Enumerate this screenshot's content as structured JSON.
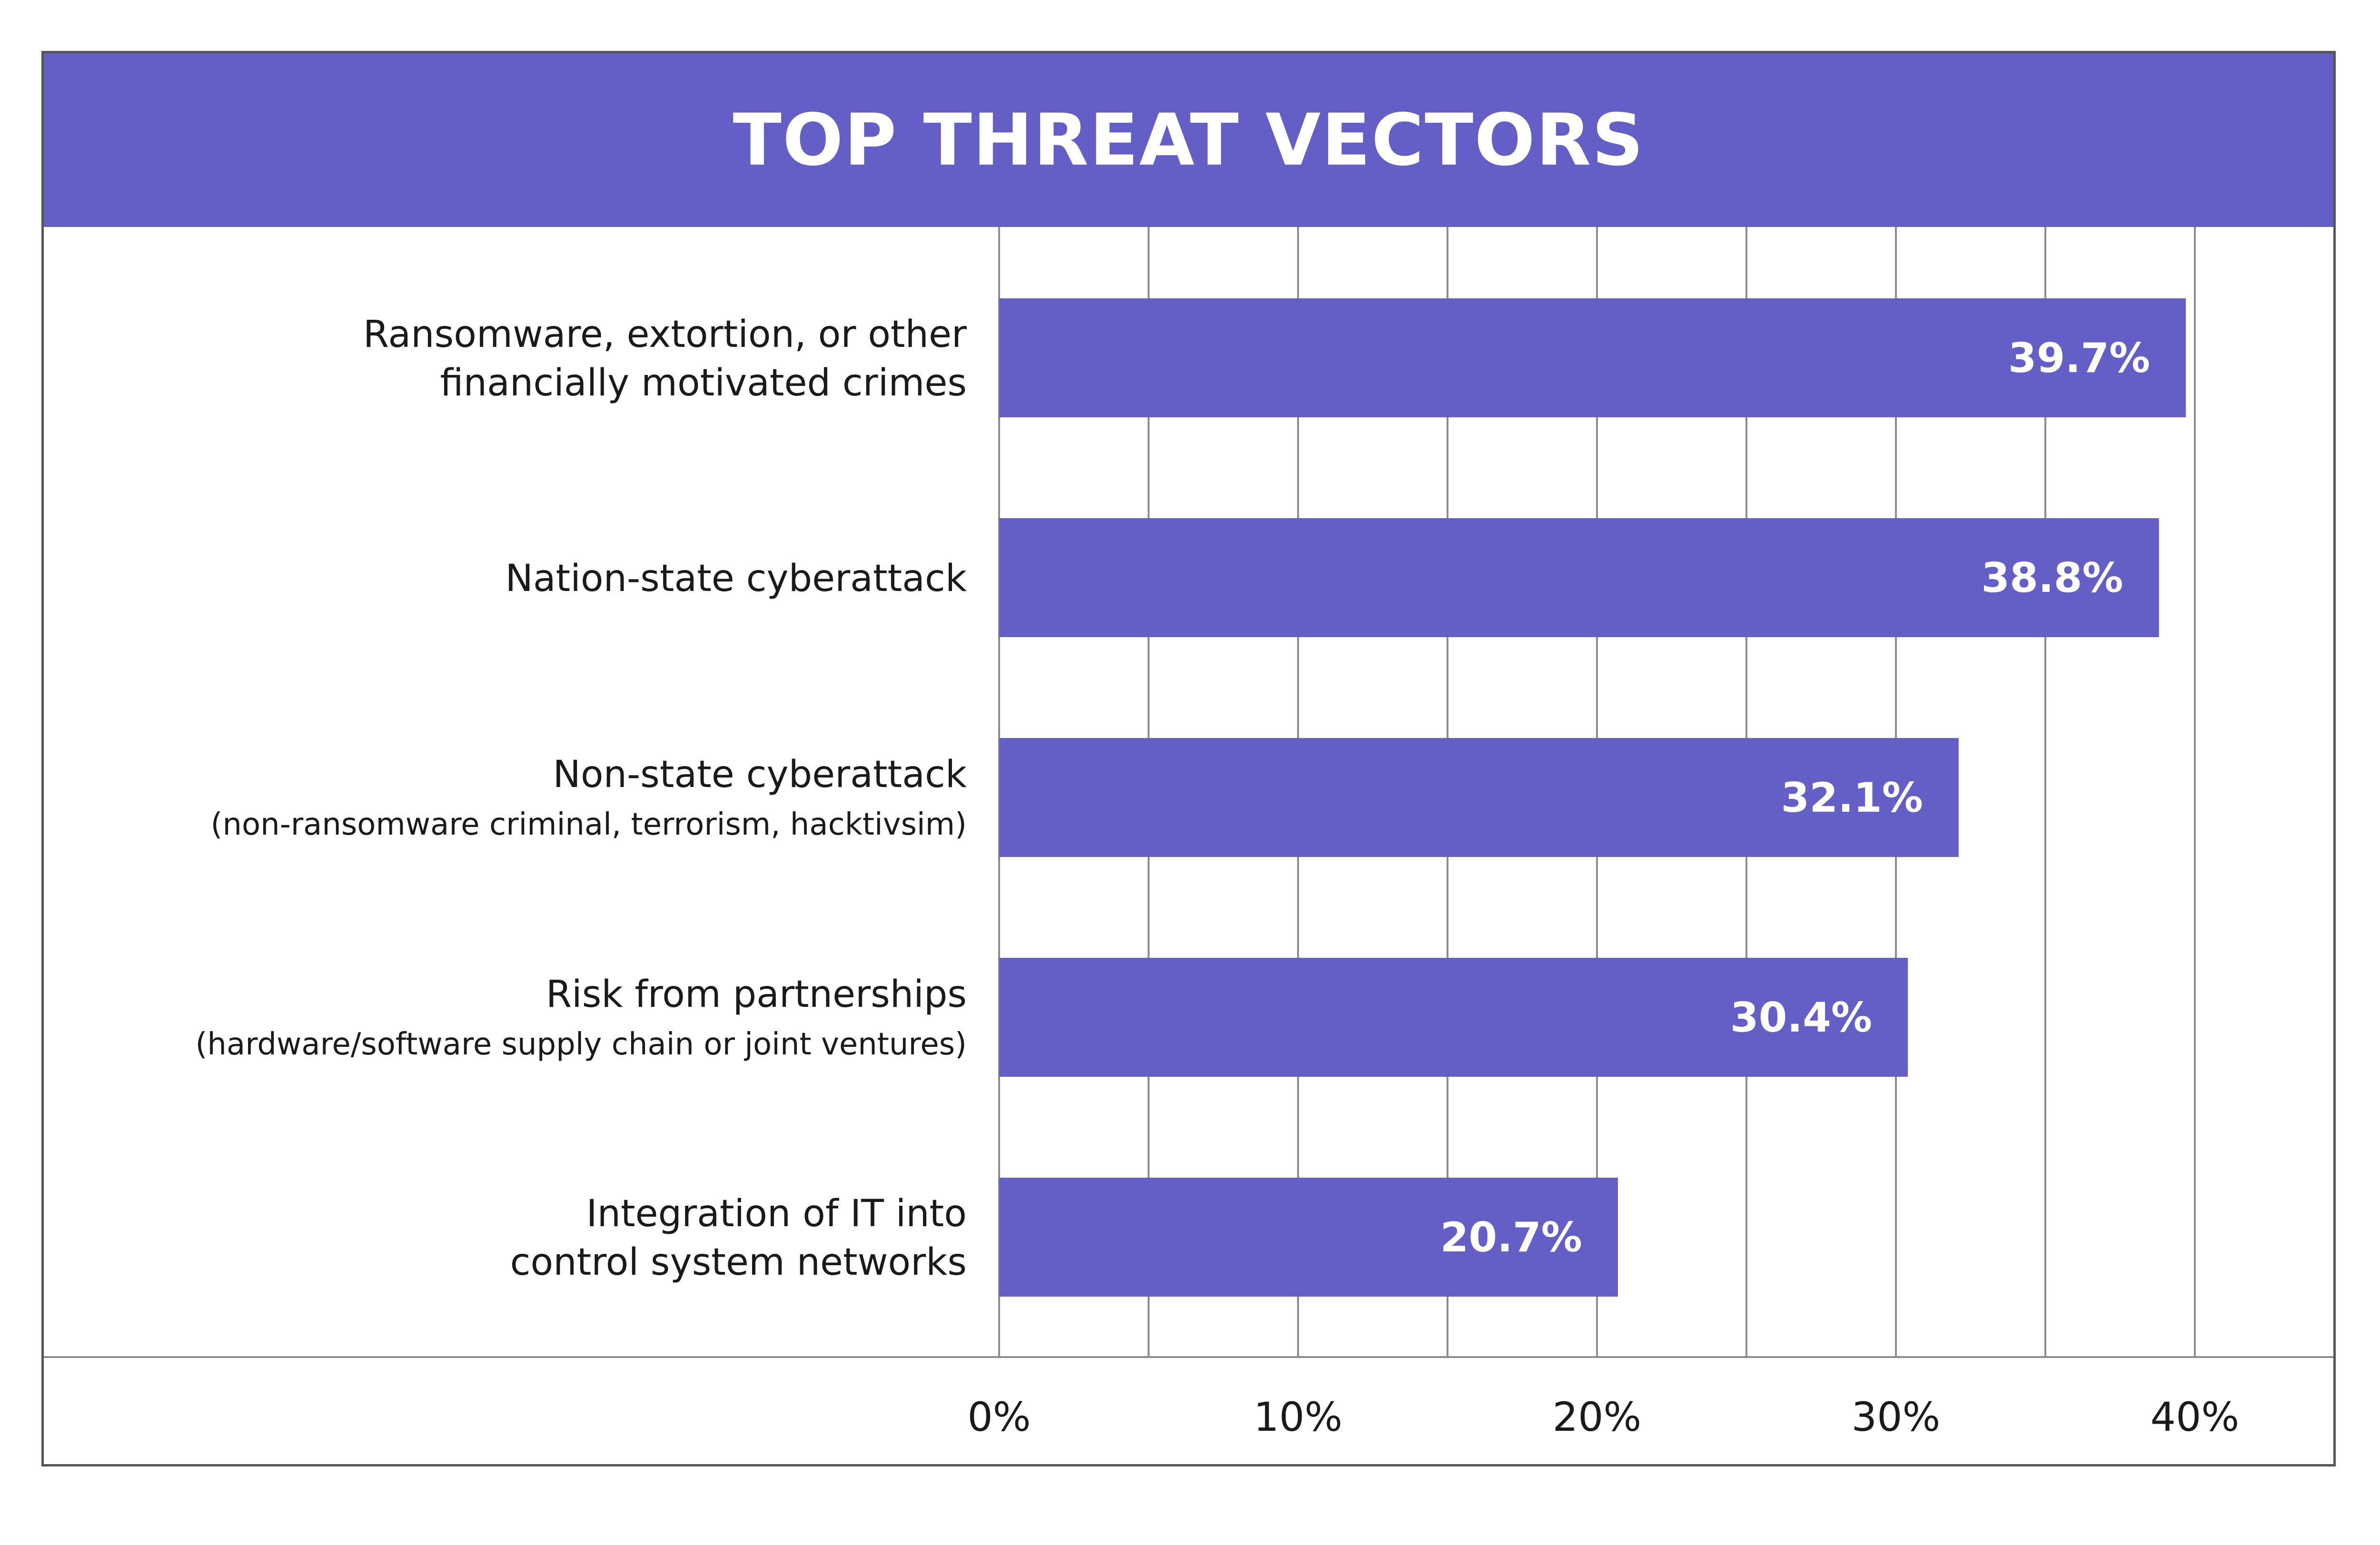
{
  "chart_data": {
    "type": "bar",
    "orientation": "horizontal",
    "title": "TOP THREAT VECTORS",
    "categories": [
      {
        "label": "Ransomware, extortion, or other\nfinancially motivated crimes",
        "sublabel": ""
      },
      {
        "label": "Nation-state cyberattack",
        "sublabel": ""
      },
      {
        "label": "Non-state cyberattack",
        "sublabel": "(non-ransomware criminal, terrorism, hacktivsim)"
      },
      {
        "label": "Risk from partnerships",
        "sublabel": "(hardware/software supply chain or joint ventures)"
      },
      {
        "label": "Integration of IT into\ncontrol system networks",
        "sublabel": ""
      }
    ],
    "values": [
      39.7,
      38.8,
      32.1,
      30.4,
      20.7
    ],
    "data_labels": [
      "39.7%",
      "38.8%",
      "32.1%",
      "30.4%",
      "20.7%"
    ],
    "x_ticks": [
      0,
      10,
      20,
      30,
      40
    ],
    "x_tick_labels": [
      "0%",
      "10%",
      "20%",
      "30%",
      "40%"
    ],
    "minor_gridlines_step": 5,
    "xlim": [
      0,
      45
    ],
    "grid": true,
    "legend": "none",
    "xlabel": "",
    "ylabel": ""
  },
  "colors": {
    "bar": "#645fc6",
    "title_bar": "#645fc6",
    "title_text": "#ffffff",
    "grid": "#8c8c8c",
    "frame": "#555555",
    "text": "#1a1a1a",
    "data_label": "#ffffff"
  }
}
